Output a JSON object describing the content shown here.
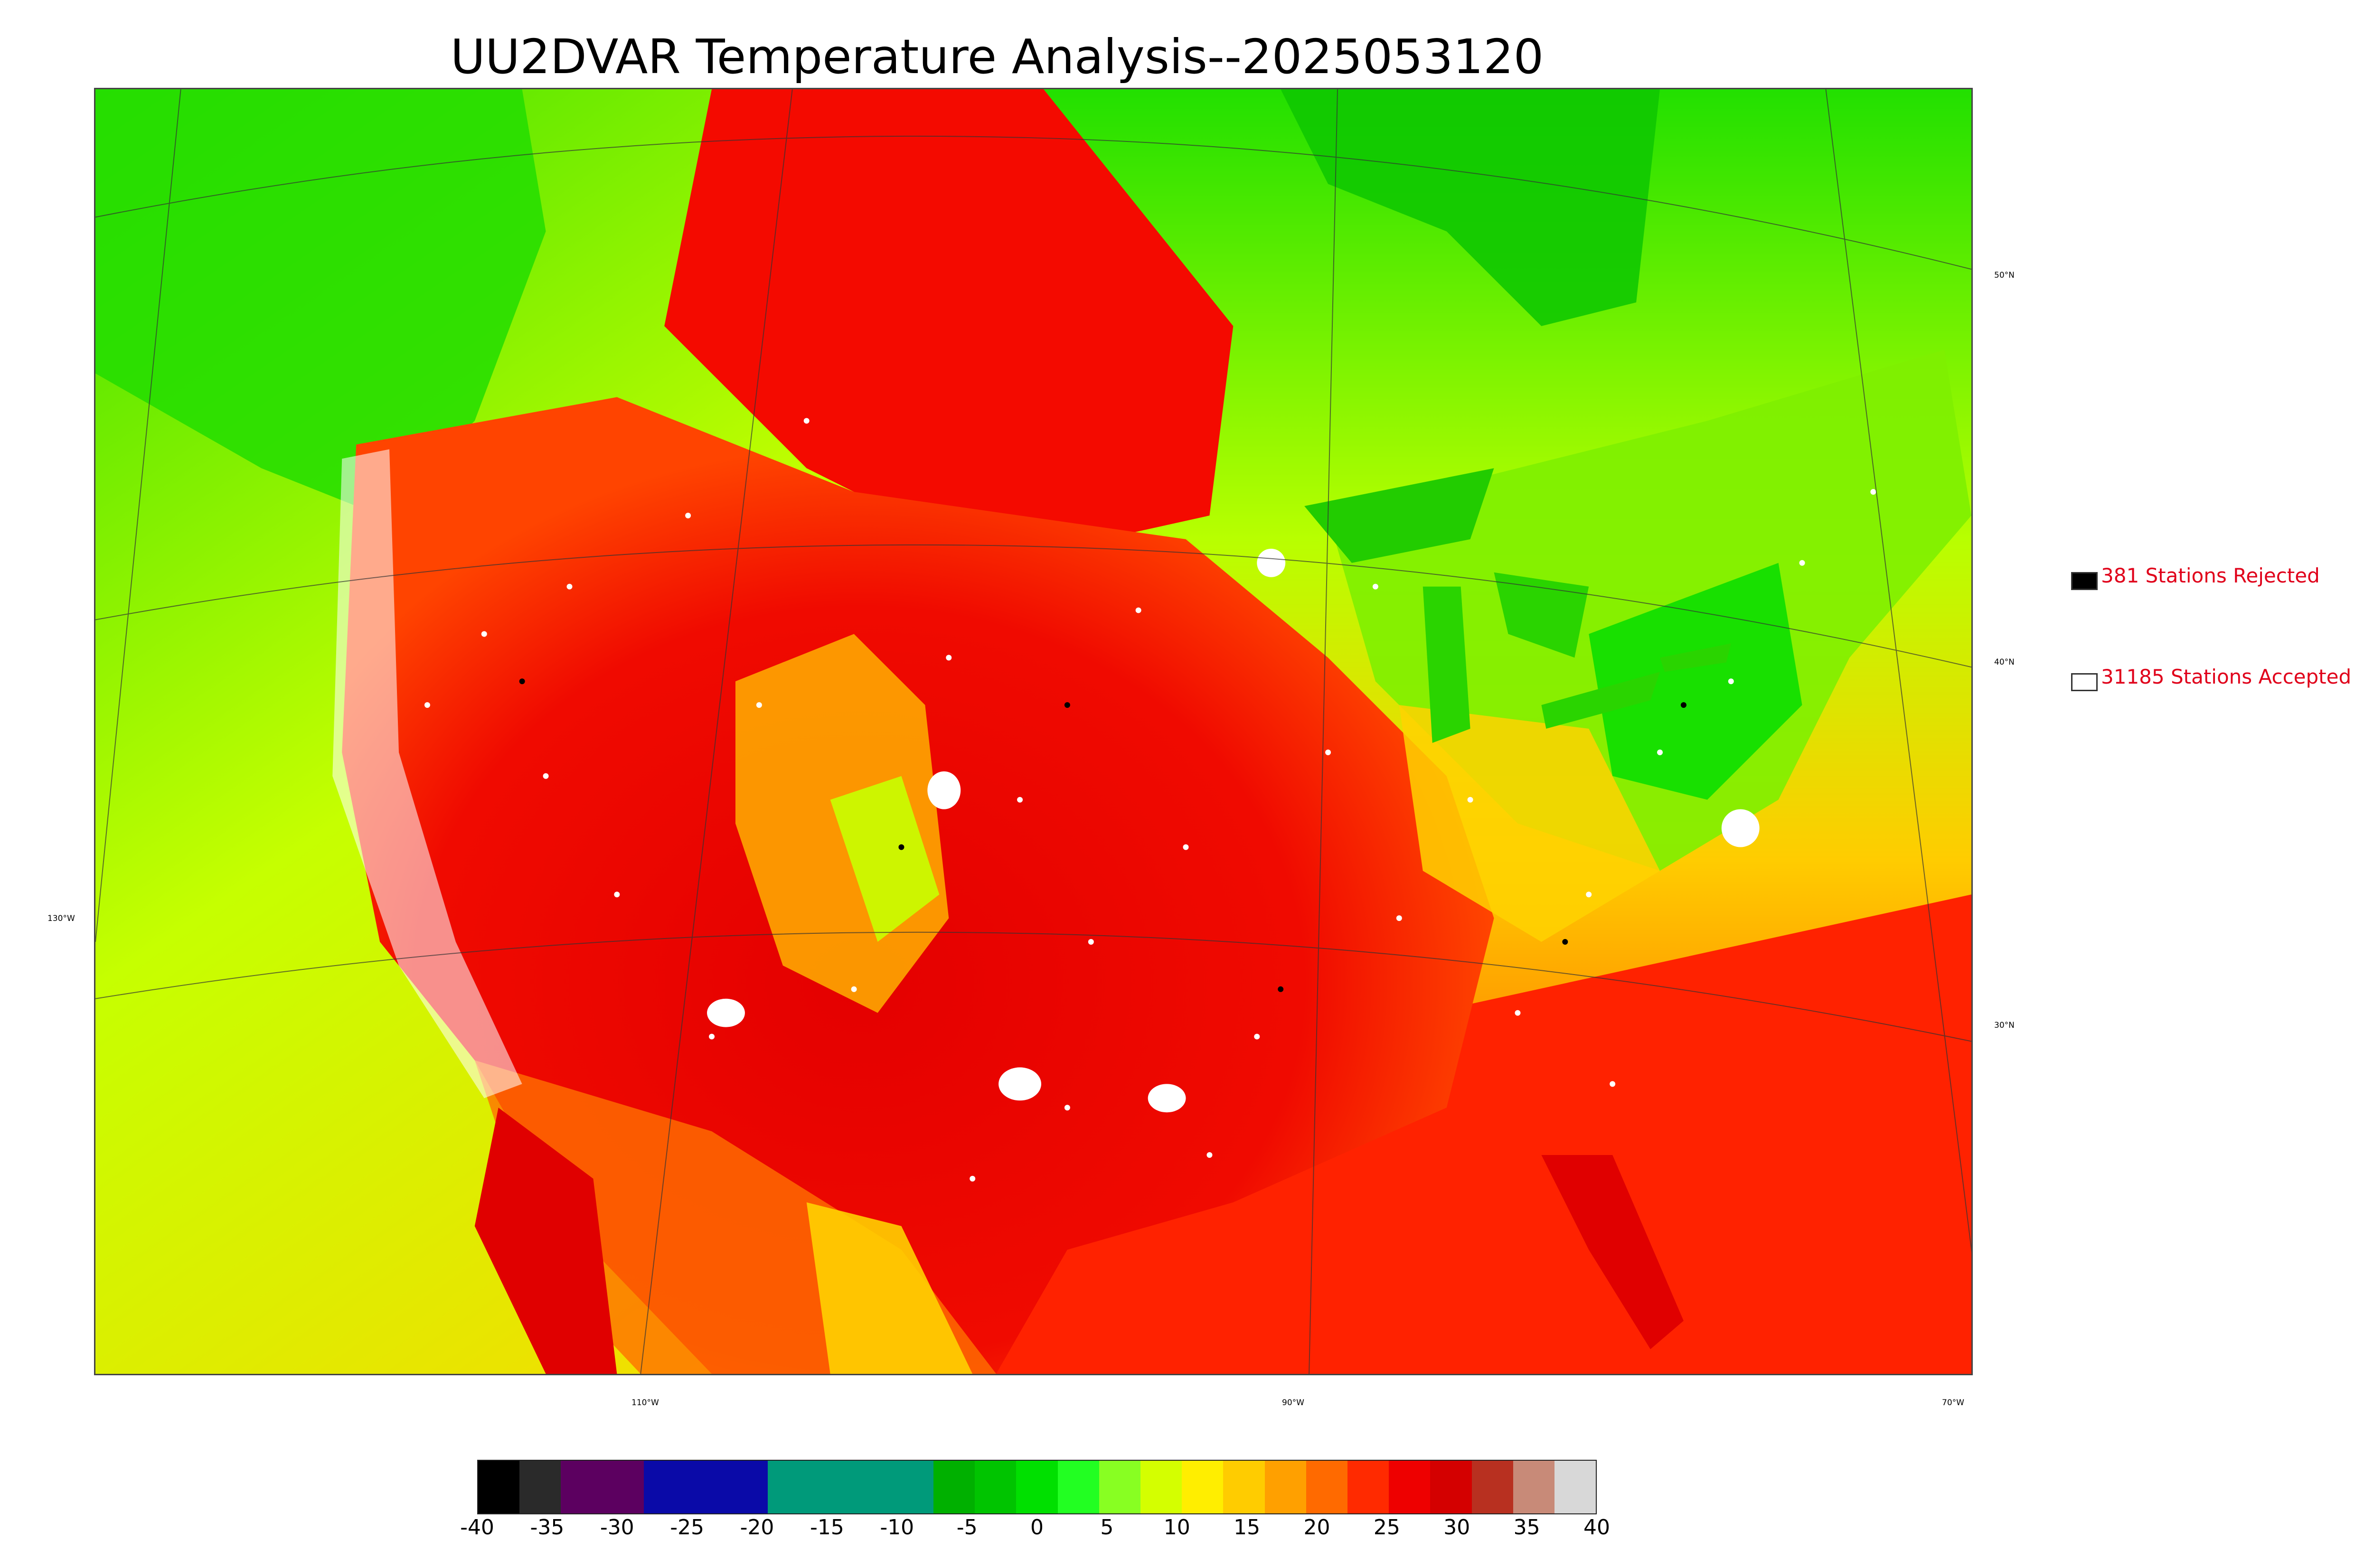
{
  "title": "UU2DVAR Temperature Analysis--2025053120",
  "legend": {
    "rejected": {
      "label": "381 Stations Rejected",
      "color": "#000000"
    },
    "accepted": {
      "label": "31185 Stations Accepted",
      "color": "#ffffff"
    },
    "text_color": "#e0001a"
  },
  "lat_labels": [
    "50°N",
    "40°N",
    "30°N"
  ],
  "lon_labels": [
    "130°W",
    "110°W",
    "90°W",
    "70°W"
  ],
  "colorbar": {
    "ticks": [
      "-40",
      "-35",
      "-30",
      "-25",
      "-20",
      "-15",
      "-10",
      "-5",
      "0",
      "5",
      "10",
      "15",
      "20",
      "25",
      "30",
      "35",
      "40"
    ],
    "segments": [
      {
        "color": "#000000"
      },
      {
        "color": "#2a2a2a"
      },
      {
        "color": "#5c0060"
      },
      {
        "color": "#5c0060"
      },
      {
        "color": "#0a0aa8"
      },
      {
        "color": "#0a0aa8"
      },
      {
        "color": "#0a0aa8"
      },
      {
        "color": "#009a7a"
      },
      {
        "color": "#009a7a"
      },
      {
        "color": "#009a7a"
      },
      {
        "color": "#009a7a"
      },
      {
        "color": "#00b000"
      },
      {
        "color": "#00c400"
      },
      {
        "color": "#00e000"
      },
      {
        "color": "#22ff22"
      },
      {
        "color": "#88ff22"
      },
      {
        "color": "#d4ff00"
      },
      {
        "color": "#ffee00"
      },
      {
        "color": "#ffcc00"
      },
      {
        "color": "#ffa000"
      },
      {
        "color": "#ff6a00"
      },
      {
        "color": "#ff2a00"
      },
      {
        "color": "#ee0000"
      },
      {
        "color": "#d40000"
      },
      {
        "color": "#b83020"
      },
      {
        "color": "#c88a78"
      },
      {
        "color": "#d8d8d8"
      }
    ]
  },
  "colors": {
    "hot": "#e80000",
    "warm": "#ff5a00",
    "mild": "#ffd000",
    "cool": "#a8ff00",
    "cold": "#18e000",
    "ocean_west": "#f0e000",
    "ocean_gulf": "#ff2a00"
  }
}
